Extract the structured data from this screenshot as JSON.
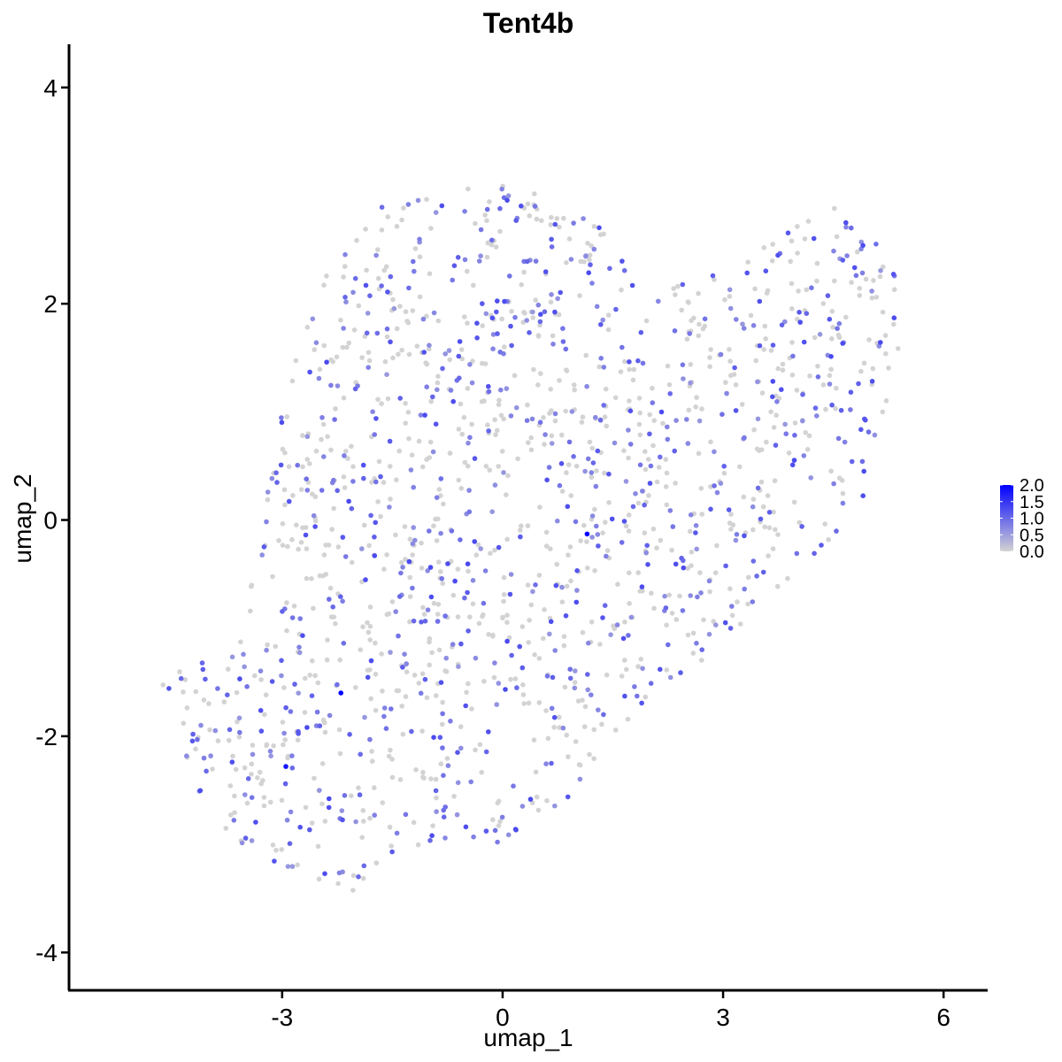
{
  "chart_data": {
    "type": "scatter",
    "title": "Tent4b",
    "xlabel": "umap_1",
    "ylabel": "umap_2",
    "xlim": [
      -5.9,
      6.6
    ],
    "ylim": [
      -4.35,
      4.4
    ],
    "x_ticks": [
      -3,
      0,
      3,
      6
    ],
    "x_tick_labels": [
      "-3",
      "0",
      "3",
      "6"
    ],
    "y_ticks": [
      -4,
      -2,
      0,
      2,
      4
    ],
    "y_tick_labels": [
      "-4",
      "-2",
      "0",
      "2",
      "4"
    ],
    "grid": false,
    "legend": {
      "placement": "right",
      "type": "colorbar",
      "range": [
        0,
        2.0
      ],
      "ticks": [
        0.0,
        0.5,
        1.0,
        1.5,
        2.0
      ],
      "tick_labels": [
        "0.0",
        "0.5",
        "1.0",
        "1.5",
        "2.0"
      ],
      "color_low": "#d3d3d3",
      "color_high": "#0000ff"
    },
    "point_count": 1600,
    "outline": [
      [
        -4.75,
        -1.3
      ],
      [
        -4.35,
        -1.35
      ],
      [
        -3.55,
        -1.05
      ],
      [
        -3.35,
        -0.3
      ],
      [
        -3.15,
        0.6
      ],
      [
        -2.85,
        1.65
      ],
      [
        -2.55,
        2.1
      ],
      [
        -2.25,
        2.65
      ],
      [
        -1.5,
        2.95
      ],
      [
        -0.8,
        3.05
      ],
      [
        0.2,
        3.15
      ],
      [
        0.8,
        2.9
      ],
      [
        1.5,
        2.7
      ],
      [
        2.0,
        2.1
      ],
      [
        2.55,
        2.2
      ],
      [
        3.25,
        2.35
      ],
      [
        3.7,
        2.6
      ],
      [
        4.4,
        3.05
      ],
      [
        4.9,
        2.75
      ],
      [
        5.35,
        2.3
      ],
      [
        5.4,
        1.65
      ],
      [
        5.2,
        0.8
      ],
      [
        4.9,
        0.2
      ],
      [
        4.7,
        -0.05
      ],
      [
        4.1,
        -0.4
      ],
      [
        3.5,
        -0.85
      ],
      [
        3.0,
        -1.15
      ],
      [
        2.5,
        -1.45
      ],
      [
        1.85,
        -1.75
      ],
      [
        1.2,
        -2.3
      ],
      [
        0.75,
        -2.7
      ],
      [
        0.2,
        -2.95
      ],
      [
        -0.45,
        -3.05
      ],
      [
        -1.4,
        -3.1
      ],
      [
        -2.05,
        -3.45
      ],
      [
        -2.65,
        -3.3
      ],
      [
        -3.3,
        -3.1
      ],
      [
        -3.85,
        -2.9
      ],
      [
        -4.25,
        -2.4
      ],
      [
        -4.45,
        -1.9
      ],
      [
        -4.65,
        -1.6
      ]
    ],
    "highlight_points": [
      {
        "x": 1.15,
        "y": -0.13,
        "value": 2.0
      },
      {
        "x": -2.2,
        "y": -1.6,
        "value": 2.0
      },
      {
        "x": -2.95,
        "y": -2.28,
        "value": 1.8
      }
    ]
  }
}
